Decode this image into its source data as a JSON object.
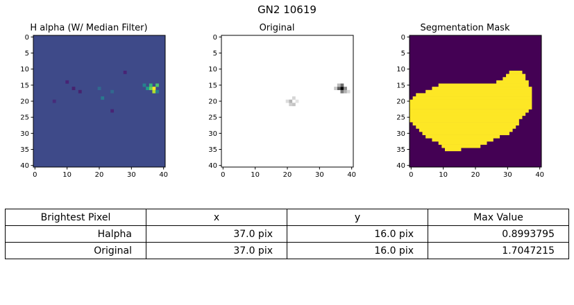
{
  "figure": {
    "title": "GN2 10619"
  },
  "chart_data": [
    {
      "type": "heatmap",
      "title": "H alpha (W/ Median Filter)",
      "colormap": "viridis",
      "xlim": [
        0,
        40
      ],
      "ylim": [
        0,
        40
      ],
      "y_inverted": true,
      "xticks": [
        0,
        10,
        20,
        30,
        40
      ],
      "yticks": [
        0,
        5,
        10,
        15,
        20,
        25,
        30,
        35,
        40
      ],
      "background_color": "#3e4a89",
      "features": [
        {
          "label": "brightest",
          "x": 37,
          "y": 16,
          "value": 0.8993795,
          "color": "#fde725"
        },
        {
          "label": "halo",
          "x": 36,
          "y": 16,
          "color": "#6ccd5a"
        },
        {
          "label": "halo",
          "x": 35,
          "y": 16,
          "color": "#1f9e89"
        },
        {
          "label": "halo",
          "x": 37,
          "y": 17,
          "color": "#b5de2b"
        },
        {
          "label": "halo",
          "x": 36,
          "y": 15,
          "color": "#35b779"
        },
        {
          "label": "halo",
          "x": 38,
          "y": 15,
          "color": "#4ac16d"
        },
        {
          "label": "halo",
          "x": 34,
          "y": 15,
          "color": "#26828e"
        },
        {
          "label": "halo",
          "x": 38,
          "y": 17,
          "color": "#26828e"
        },
        {
          "label": "blob",
          "x": 21,
          "y": 19,
          "color": "#2a788e"
        },
        {
          "label": "blob",
          "x": 20,
          "y": 16,
          "color": "#31688e"
        },
        {
          "label": "blob",
          "x": 24,
          "y": 17,
          "color": "#31688e"
        },
        {
          "label": "dark",
          "x": 12,
          "y": 16,
          "color": "#46236f"
        },
        {
          "label": "dark",
          "x": 10,
          "y": 14,
          "color": "#482475"
        },
        {
          "label": "dark",
          "x": 14,
          "y": 17,
          "color": "#46236f"
        },
        {
          "label": "dark",
          "x": 28,
          "y": 11,
          "color": "#482475"
        },
        {
          "label": "dark",
          "x": 24,
          "y": 23,
          "color": "#482475"
        },
        {
          "label": "dark",
          "x": 6,
          "y": 20,
          "color": "#472c7a"
        }
      ]
    },
    {
      "type": "heatmap",
      "title": "Original",
      "colormap": "gray_r",
      "xlim": [
        0,
        40
      ],
      "ylim": [
        0,
        40
      ],
      "y_inverted": true,
      "xticks": [
        0,
        10,
        20,
        30,
        40
      ],
      "yticks": [
        0,
        5,
        10,
        15,
        20,
        25,
        30,
        35,
        40
      ],
      "features": [
        {
          "label": "brightest",
          "x": 37,
          "y": 16,
          "value": 1.7047215,
          "color": "#000000"
        },
        {
          "label": "halo",
          "x": 36,
          "y": 16,
          "color": "#5a5a5a"
        },
        {
          "label": "halo",
          "x": 37,
          "y": 15,
          "color": "#6a6a6a"
        },
        {
          "label": "halo",
          "x": 37,
          "y": 17,
          "color": "#7a7a7a"
        },
        {
          "label": "halo",
          "x": 38,
          "y": 16,
          "color": "#8a8a8a"
        },
        {
          "label": "halo",
          "x": 38,
          "y": 17,
          "color": "#b0b0b0"
        },
        {
          "label": "halo",
          "x": 36,
          "y": 15,
          "color": "#b8b8b8"
        },
        {
          "label": "halo",
          "x": 39,
          "y": 17,
          "color": "#d8d8d8"
        },
        {
          "label": "halo",
          "x": 35,
          "y": 16,
          "color": "#c8c8c8"
        },
        {
          "label": "blob",
          "x": 21,
          "y": 20,
          "color": "#b4b4b4"
        },
        {
          "label": "blob",
          "x": 22,
          "y": 21,
          "color": "#c4c4c4"
        },
        {
          "label": "blob",
          "x": 21,
          "y": 21,
          "color": "#d0d0d0"
        },
        {
          "label": "blob",
          "x": 22,
          "y": 19,
          "color": "#d6d6d6"
        },
        {
          "label": "blob",
          "x": 20,
          "y": 20,
          "color": "#dcdcdc"
        },
        {
          "label": "blob",
          "x": 23,
          "y": 20,
          "color": "#e4e4e4"
        }
      ]
    },
    {
      "type": "heatmap",
      "title": "Segmentation Mask",
      "colormap": "viridis",
      "xlim": [
        0,
        40
      ],
      "ylim": [
        0,
        40
      ],
      "y_inverted": true,
      "xticks": [
        0,
        10,
        20,
        30,
        40
      ],
      "yticks": [
        0,
        5,
        10,
        15,
        20,
        25,
        30,
        35,
        40
      ],
      "background_color": "#440154",
      "mask_color": "#fde725",
      "mask_rows": [
        {
          "y": 11,
          "x0": 31,
          "x1": 34
        },
        {
          "y": 12,
          "x0": 30,
          "x1": 35
        },
        {
          "y": 13,
          "x0": 29,
          "x1": 35
        },
        {
          "y": 14,
          "x0": 27,
          "x1": 36
        },
        {
          "y": 15,
          "x0": 9,
          "x1": 36
        },
        {
          "y": 16,
          "x0": 7,
          "x1": 37
        },
        {
          "y": 17,
          "x0": 5,
          "x1": 37
        },
        {
          "y": 18,
          "x0": 2,
          "x1": 37
        },
        {
          "y": 19,
          "x0": 1,
          "x1": 37
        },
        {
          "y": 20,
          "x0": 0,
          "x1": 37
        },
        {
          "y": 21,
          "x0": 0,
          "x1": 37
        },
        {
          "y": 22,
          "x0": 0,
          "x1": 37
        },
        {
          "y": 23,
          "x0": 0,
          "x1": 36
        },
        {
          "y": 24,
          "x0": 0,
          "x1": 35
        },
        {
          "y": 25,
          "x0": 0,
          "x1": 34
        },
        {
          "y": 26,
          "x0": 0,
          "x1": 33
        },
        {
          "y": 27,
          "x0": 1,
          "x1": 33
        },
        {
          "y": 28,
          "x0": 2,
          "x1": 32
        },
        {
          "y": 29,
          "x0": 3,
          "x1": 31
        },
        {
          "y": 30,
          "x0": 4,
          "x1": 30
        },
        {
          "y": 31,
          "x0": 5,
          "x1": 27
        },
        {
          "y": 32,
          "x0": 7,
          "x1": 25
        },
        {
          "y": 33,
          "x0": 9,
          "x1": 23
        },
        {
          "y": 34,
          "x0": 10,
          "x1": 21
        },
        {
          "y": 35,
          "x0": 11,
          "x1": 15
        }
      ]
    }
  ],
  "table": {
    "headers": [
      "Brightest Pixel",
      "x",
      "y",
      "Max Value"
    ],
    "rows": [
      {
        "label": "Halpha",
        "x": "37.0 pix",
        "y": "16.0 pix",
        "max": "0.8993795"
      },
      {
        "label": "Original",
        "x": "37.0 pix",
        "y": "16.0 pix",
        "max": "1.7047215"
      }
    ]
  }
}
